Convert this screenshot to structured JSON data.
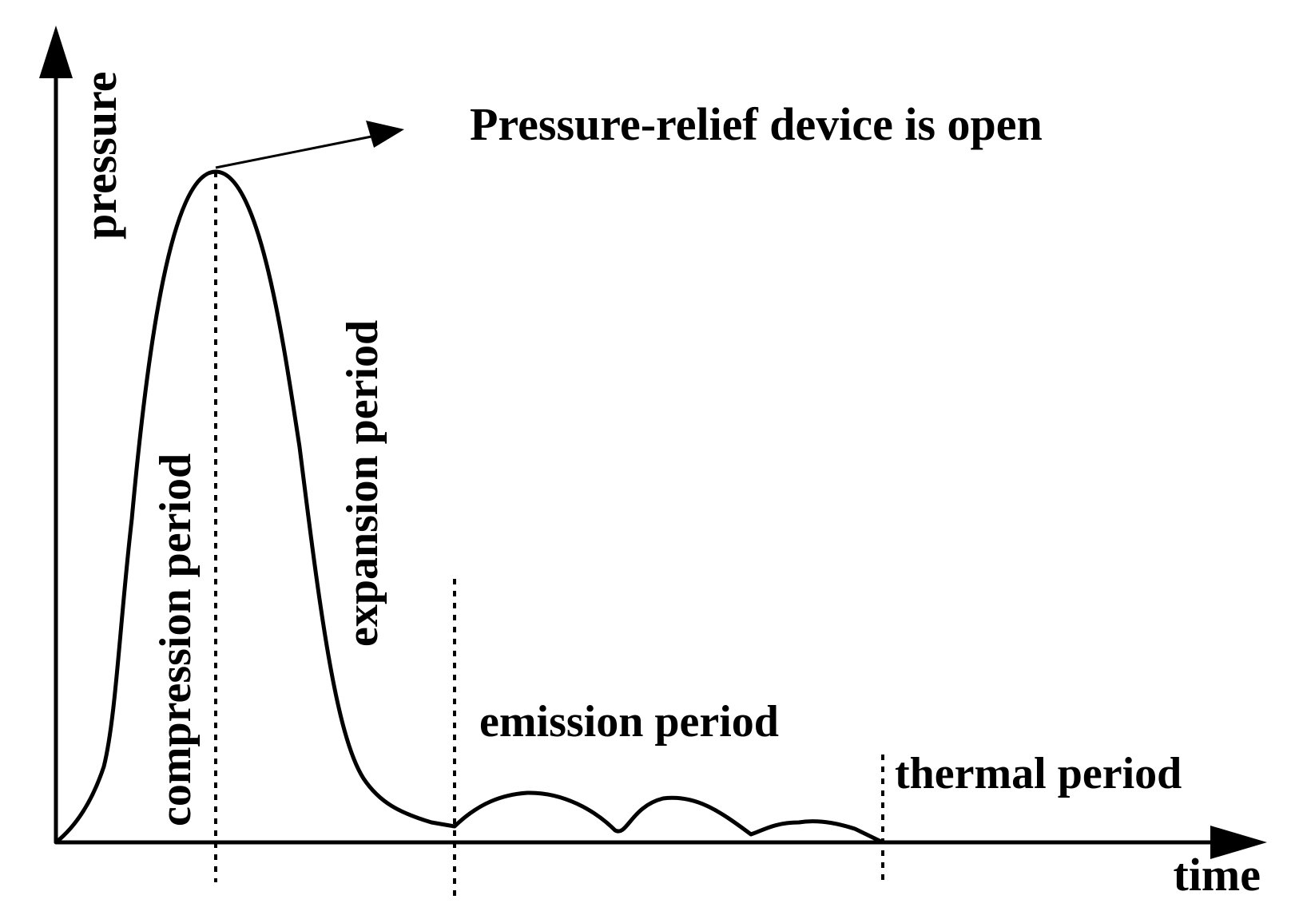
{
  "diagram": {
    "y_axis_label": "pressure",
    "x_axis_label": "time",
    "annotation": "Pressure-relief device is open",
    "phases": {
      "compression": "compression period",
      "expansion": "expansion period",
      "emission": "emission period",
      "thermal": "thermal period"
    }
  },
  "colors": {
    "ink": "#000000",
    "background": "#ffffff"
  }
}
